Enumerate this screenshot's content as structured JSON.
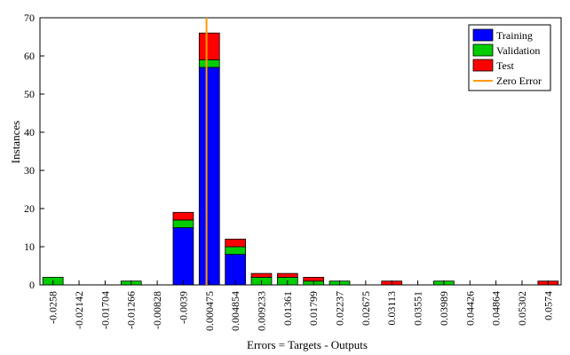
{
  "chart_data": {
    "type": "bar",
    "stacked": true,
    "xlabel": "Errors = Targets - Outputs",
    "ylabel": "Instances",
    "ylim": [
      0,
      70
    ],
    "yticks": [
      0,
      10,
      20,
      30,
      40,
      50,
      60,
      70
    ],
    "categories": [
      "-0.0258",
      "-0.02142",
      "-0.01704",
      "-0.01266",
      "-0.00828",
      "-0.0039",
      "0.000475",
      "0.004854",
      "0.009233",
      "0.01361",
      "0.01799",
      "0.02237",
      "0.02675",
      "0.03113",
      "0.03551",
      "0.03989",
      "0.04426",
      "0.04864",
      "0.05302",
      "0.0574"
    ],
    "series": [
      {
        "name": "Training",
        "color": "#0000ff",
        "values": [
          0,
          0,
          0,
          0,
          0,
          15,
          57,
          8,
          0,
          0,
          0,
          0,
          0,
          0,
          0,
          0,
          0,
          0,
          0,
          0
        ]
      },
      {
        "name": "Validation",
        "color": "#00cc00",
        "values": [
          2,
          0,
          0,
          1,
          0,
          2,
          2,
          2,
          2,
          2,
          1,
          1,
          0,
          0,
          0,
          1,
          0,
          0,
          0,
          0
        ]
      },
      {
        "name": "Test",
        "color": "#ff0000",
        "values": [
          0,
          0,
          0,
          0,
          0,
          2,
          7,
          2,
          1,
          1,
          1,
          0,
          0,
          1,
          0,
          0,
          0,
          0,
          0,
          1
        ]
      }
    ],
    "zero_error": {
      "name": "Zero Error",
      "color": "#ff9900",
      "x": 0
    },
    "legend_position": "top-right",
    "grid": false
  }
}
